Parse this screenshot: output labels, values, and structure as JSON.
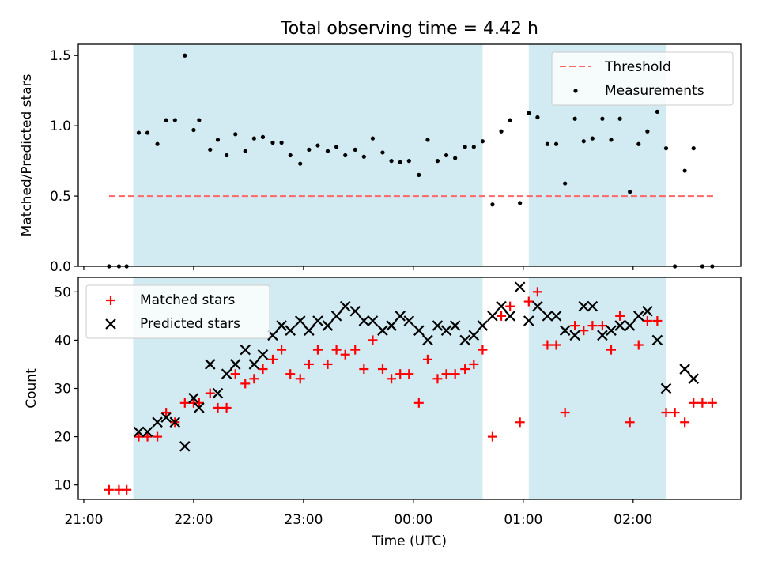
{
  "title": "Total observing time = 4.42 h",
  "x_axis": {
    "label": "Time (UTC)",
    "range_hours": [
      20.95,
      26.98
    ],
    "ticks": [
      {
        "label": "21:00",
        "hour": 21
      },
      {
        "label": "22:00",
        "hour": 22
      },
      {
        "label": "23:00",
        "hour": 23
      },
      {
        "label": "00:00",
        "hour": 24
      },
      {
        "label": "01:00",
        "hour": 25
      },
      {
        "label": "02:00",
        "hour": 26
      }
    ],
    "note": "hours after midnight of the first day; 24 = 00:00, 25 = 01:00, 26 = 02:00"
  },
  "colors": {
    "observing_band": "#add8e6",
    "threshold": "#ff6666",
    "measurement": "#000000",
    "matched": "#ff0000",
    "predicted": "#000000"
  },
  "chart_data": [
    {
      "type": "scatter",
      "ylabel": "Matched/Predicted stars",
      "ylim": [
        0,
        1.58
      ],
      "yticks": [
        "0.0",
        "0.5",
        "1.0",
        "1.5"
      ],
      "observing_intervals_hours": [
        [
          21.45,
          24.63
        ],
        [
          25.05,
          26.3
        ]
      ],
      "legend": {
        "position": "top-right",
        "entries": [
          "Threshold",
          "Measurements"
        ]
      },
      "threshold": {
        "name": "Threshold",
        "value": 0.5,
        "x_range": [
          21.23,
          26.73
        ]
      },
      "series": [
        {
          "name": "Measurements",
          "marker": "dot",
          "points": [
            [
              21.23,
              0
            ],
            [
              21.32,
              0
            ],
            [
              21.39,
              0
            ],
            [
              21.5,
              0.95
            ],
            [
              21.58,
              0.95
            ],
            [
              21.67,
              0.87
            ],
            [
              21.75,
              1.04
            ],
            [
              21.83,
              1.04
            ],
            [
              21.92,
              1.5
            ],
            [
              22.0,
              0.97
            ],
            [
              22.05,
              1.04
            ],
            [
              22.15,
              0.83
            ],
            [
              22.22,
              0.9
            ],
            [
              22.3,
              0.79
            ],
            [
              22.38,
              0.94
            ],
            [
              22.47,
              0.82
            ],
            [
              22.55,
              0.91
            ],
            [
              22.63,
              0.92
            ],
            [
              22.72,
              0.88
            ],
            [
              22.8,
              0.88
            ],
            [
              22.88,
              0.79
            ],
            [
              22.97,
              0.73
            ],
            [
              23.05,
              0.83
            ],
            [
              23.13,
              0.86
            ],
            [
              23.22,
              0.82
            ],
            [
              23.3,
              0.85
            ],
            [
              23.38,
              0.79
            ],
            [
              23.47,
              0.83
            ],
            [
              23.55,
              0.78
            ],
            [
              23.63,
              0.91
            ],
            [
              23.72,
              0.81
            ],
            [
              23.8,
              0.75
            ],
            [
              23.88,
              0.74
            ],
            [
              23.96,
              0.75
            ],
            [
              24.05,
              0.65
            ],
            [
              24.13,
              0.9
            ],
            [
              24.22,
              0.75
            ],
            [
              24.3,
              0.79
            ],
            [
              24.38,
              0.77
            ],
            [
              24.47,
              0.85
            ],
            [
              24.55,
              0.85
            ],
            [
              24.63,
              0.89
            ],
            [
              24.72,
              0.44
            ],
            [
              24.8,
              0.96
            ],
            [
              24.88,
              1.04
            ],
            [
              24.97,
              0.45
            ],
            [
              25.05,
              1.09
            ],
            [
              25.13,
              1.06
            ],
            [
              25.22,
              0.87
            ],
            [
              25.3,
              0.87
            ],
            [
              25.38,
              0.59
            ],
            [
              25.47,
              1.05
            ],
            [
              25.55,
              0.89
            ],
            [
              25.63,
              0.91
            ],
            [
              25.72,
              1.05
            ],
            [
              25.8,
              0.9
            ],
            [
              25.88,
              1.05
            ],
            [
              25.97,
              0.53
            ],
            [
              26.05,
              0.87
            ],
            [
              26.13,
              0.96
            ],
            [
              26.22,
              1.1
            ],
            [
              26.3,
              0.84
            ],
            [
              26.38,
              0
            ],
            [
              26.47,
              0.68
            ],
            [
              26.55,
              0.84
            ],
            [
              26.63,
              0
            ],
            [
              26.72,
              0
            ]
          ]
        }
      ]
    },
    {
      "type": "scatter",
      "ylabel": "Count",
      "ylim": [
        7,
        53
      ],
      "yticks": [
        "10",
        "20",
        "30",
        "40",
        "50"
      ],
      "observing_intervals_hours": [
        [
          21.45,
          24.63
        ],
        [
          25.05,
          26.3
        ]
      ],
      "legend": {
        "position": "top-left",
        "entries": [
          "Matched stars",
          "Predicted stars"
        ]
      },
      "series": [
        {
          "name": "Matched stars",
          "marker": "plus",
          "points": [
            [
              21.23,
              9
            ],
            [
              21.32,
              9
            ],
            [
              21.39,
              9
            ],
            [
              21.5,
              20
            ],
            [
              21.58,
              20
            ],
            [
              21.67,
              20
            ],
            [
              21.75,
              25
            ],
            [
              21.83,
              23
            ],
            [
              21.92,
              27
            ],
            [
              22.0,
              27
            ],
            [
              22.05,
              27
            ],
            [
              22.15,
              29
            ],
            [
              22.22,
              26
            ],
            [
              22.3,
              26
            ],
            [
              22.38,
              33
            ],
            [
              22.47,
              31
            ],
            [
              22.55,
              32
            ],
            [
              22.63,
              34
            ],
            [
              22.72,
              36
            ],
            [
              22.8,
              38
            ],
            [
              22.88,
              33
            ],
            [
              22.97,
              32
            ],
            [
              23.05,
              35
            ],
            [
              23.13,
              38
            ],
            [
              23.22,
              35
            ],
            [
              23.3,
              38
            ],
            [
              23.38,
              37
            ],
            [
              23.47,
              38
            ],
            [
              23.55,
              34
            ],
            [
              23.63,
              40
            ],
            [
              23.72,
              34
            ],
            [
              23.8,
              32
            ],
            [
              23.88,
              33
            ],
            [
              23.96,
              33
            ],
            [
              24.05,
              27
            ],
            [
              24.13,
              36
            ],
            [
              24.22,
              32
            ],
            [
              24.3,
              33
            ],
            [
              24.38,
              33
            ],
            [
              24.47,
              34
            ],
            [
              24.55,
              35
            ],
            [
              24.63,
              38
            ],
            [
              24.72,
              20
            ],
            [
              24.8,
              45
            ],
            [
              24.88,
              47
            ],
            [
              24.97,
              23
            ],
            [
              25.05,
              48
            ],
            [
              25.13,
              50
            ],
            [
              25.22,
              39
            ],
            [
              25.3,
              39
            ],
            [
              25.38,
              25
            ],
            [
              25.47,
              43
            ],
            [
              25.55,
              42
            ],
            [
              25.63,
              43
            ],
            [
              25.72,
              43
            ],
            [
              25.8,
              38
            ],
            [
              25.88,
              45
            ],
            [
              25.97,
              23
            ],
            [
              26.05,
              39
            ],
            [
              26.13,
              44
            ],
            [
              26.22,
              44
            ],
            [
              26.3,
              25
            ],
            [
              26.38,
              25
            ],
            [
              26.47,
              23
            ],
            [
              26.55,
              27
            ],
            [
              26.63,
              27
            ],
            [
              26.72,
              27
            ]
          ]
        },
        {
          "name": "Predicted stars",
          "marker": "x",
          "points": [
            [
              21.5,
              21
            ],
            [
              21.58,
              21
            ],
            [
              21.67,
              23
            ],
            [
              21.75,
              24
            ],
            [
              21.83,
              23
            ],
            [
              21.92,
              18
            ],
            [
              22.0,
              28
            ],
            [
              22.05,
              26
            ],
            [
              22.15,
              35
            ],
            [
              22.22,
              29
            ],
            [
              22.3,
              33
            ],
            [
              22.38,
              35
            ],
            [
              22.47,
              38
            ],
            [
              22.55,
              35
            ],
            [
              22.63,
              37
            ],
            [
              22.72,
              41
            ],
            [
              22.8,
              43
            ],
            [
              22.88,
              42
            ],
            [
              22.97,
              44
            ],
            [
              23.05,
              42
            ],
            [
              23.13,
              44
            ],
            [
              23.22,
              43
            ],
            [
              23.3,
              45
            ],
            [
              23.38,
              47
            ],
            [
              23.47,
              46
            ],
            [
              23.55,
              44
            ],
            [
              23.63,
              44
            ],
            [
              23.72,
              42
            ],
            [
              23.8,
              43
            ],
            [
              23.88,
              45
            ],
            [
              23.96,
              44
            ],
            [
              24.05,
              42
            ],
            [
              24.13,
              40
            ],
            [
              24.22,
              43
            ],
            [
              24.3,
              42
            ],
            [
              24.38,
              43
            ],
            [
              24.47,
              40
            ],
            [
              24.55,
              41
            ],
            [
              24.63,
              43
            ],
            [
              24.72,
              45
            ],
            [
              24.8,
              47
            ],
            [
              24.88,
              45
            ],
            [
              24.97,
              51
            ],
            [
              25.05,
              44
            ],
            [
              25.13,
              47
            ],
            [
              25.22,
              45
            ],
            [
              25.3,
              45
            ],
            [
              25.38,
              42
            ],
            [
              25.47,
              41
            ],
            [
              25.55,
              47
            ],
            [
              25.63,
              47
            ],
            [
              25.72,
              41
            ],
            [
              25.8,
              42
            ],
            [
              25.88,
              43
            ],
            [
              25.97,
              43
            ],
            [
              26.05,
              45
            ],
            [
              26.13,
              46
            ],
            [
              26.22,
              40
            ],
            [
              26.3,
              30
            ],
            [
              26.47,
              34
            ],
            [
              26.55,
              32
            ]
          ]
        }
      ]
    }
  ]
}
